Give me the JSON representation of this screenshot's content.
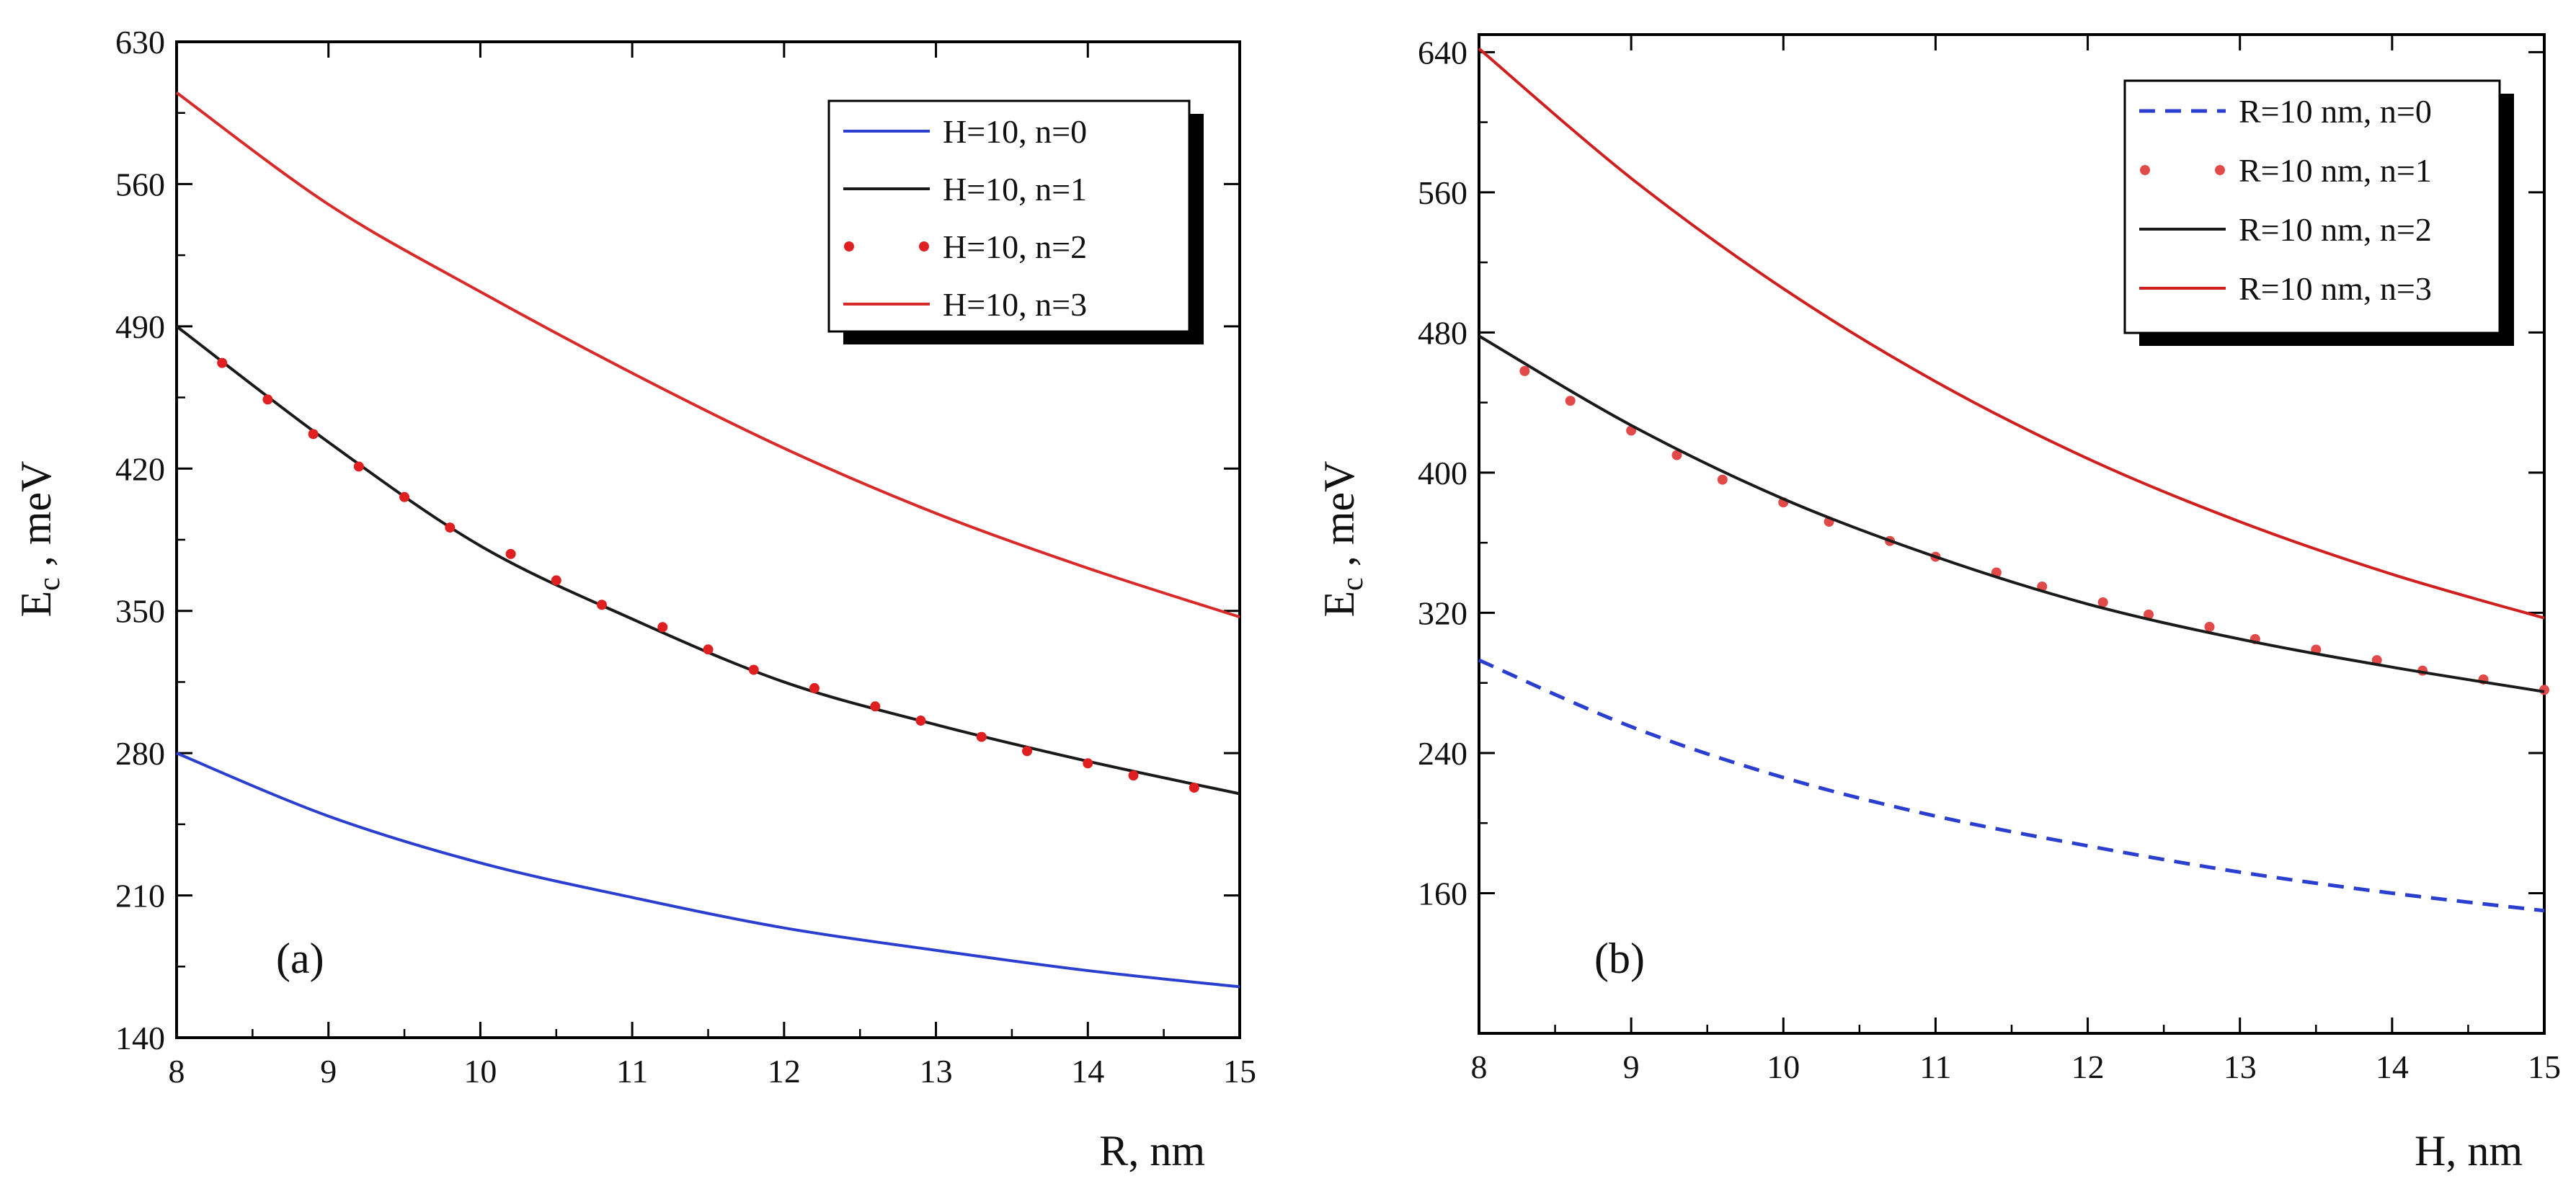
{
  "chart_data": [
    {
      "panel": "a",
      "type": "line",
      "title": "",
      "panel_label": "(a)",
      "xlabel": "R, nm",
      "ylabel_main": "E",
      "ylabel_sub": "c",
      "ylabel_rest": " , meV",
      "xlim": [
        8,
        15
      ],
      "ylim": [
        140,
        630
      ],
      "xticks": [
        8,
        9,
        10,
        11,
        12,
        13,
        14,
        15
      ],
      "yticks": [
        140,
        210,
        280,
        350,
        420,
        490,
        560,
        630
      ],
      "legend_position": "top-right",
      "series": [
        {
          "name": "H=10, n=0",
          "color": "#2a3fd0",
          "style": "solid",
          "x": [
            8,
            9,
            10,
            11,
            12,
            13,
            14,
            15
          ],
          "y": [
            280,
            249,
            226,
            209,
            194,
            183,
            173,
            165
          ]
        },
        {
          "name": "H=10, n=1",
          "color": "#1a1a1a",
          "style": "solid",
          "x": [
            8,
            9,
            10,
            11,
            12,
            13,
            14,
            15
          ],
          "y": [
            490,
            433,
            382,
            346,
            315,
            294,
            276,
            260
          ]
        },
        {
          "name": "H=10, n=2",
          "color": "#e02020",
          "style": "dots",
          "x": [
            8.3,
            8.6,
            8.9,
            9.2,
            9.5,
            9.8,
            10.2,
            10.5,
            10.8,
            11.2,
            11.5,
            11.8,
            12.2,
            12.6,
            12.9,
            13.3,
            13.6,
            14.0,
            14.3,
            14.7
          ],
          "y": [
            472,
            454,
            437,
            421,
            406,
            391,
            378,
            365,
            353,
            342,
            331,
            321,
            312,
            303,
            296,
            288,
            281,
            275,
            269,
            263
          ]
        },
        {
          "name": "H=10, n=3",
          "color": "#d92a2a",
          "style": "solid",
          "x": [
            8,
            9,
            10,
            11,
            12,
            13,
            14,
            15
          ],
          "y": [
            605,
            550,
            507,
            467,
            430,
            398,
            371,
            347
          ]
        }
      ]
    },
    {
      "panel": "b",
      "type": "line",
      "title": "",
      "panel_label": "(b)",
      "xlabel": "H, nm",
      "ylabel_main": "E",
      "ylabel_sub": "c",
      "ylabel_rest": " , meV",
      "xlim": [
        8,
        15
      ],
      "ylim": [
        80,
        650
      ],
      "xticks": [
        8,
        9,
        10,
        11,
        12,
        13,
        14,
        15
      ],
      "yticks": [
        160,
        240,
        320,
        400,
        480,
        560,
        640
      ],
      "legend_position": "top-right",
      "series": [
        {
          "name": "R=10 nm, n=0",
          "color": "#2a3fd0",
          "style": "dashed",
          "x": [
            8,
            9,
            10,
            11,
            12,
            13,
            14,
            15
          ],
          "y": [
            293,
            255,
            226,
            204,
            187,
            172,
            160,
            150
          ]
        },
        {
          "name": "R=10 nm, n=1",
          "color": "#e24a4a",
          "style": "dots",
          "x": [
            8.3,
            8.6,
            9.0,
            9.3,
            9.6,
            10.0,
            10.3,
            10.7,
            11.0,
            11.4,
            11.7,
            12.1,
            12.4,
            12.8,
            13.1,
            13.5,
            13.9,
            14.2,
            14.6,
            15.0
          ],
          "y": [
            458,
            441,
            424,
            410,
            396,
            383,
            372,
            361,
            352,
            343,
            335,
            326,
            319,
            312,
            305,
            299,
            293,
            287,
            282,
            276
          ]
        },
        {
          "name": "R=10 nm, n=2",
          "color": "#1a1a1a",
          "style": "solid",
          "x": [
            8,
            9,
            10,
            11,
            12,
            13,
            14,
            15
          ],
          "y": [
            478,
            427,
            385,
            352,
            325,
            305,
            289,
            275
          ]
        },
        {
          "name": "R=10 nm, n=3",
          "color": "#d01f1f",
          "style": "solid",
          "x": [
            8,
            9,
            10,
            11,
            12,
            13,
            14,
            15
          ],
          "y": [
            642,
            568,
            505,
            452,
            408,
            372,
            342,
            317
          ]
        }
      ]
    }
  ]
}
